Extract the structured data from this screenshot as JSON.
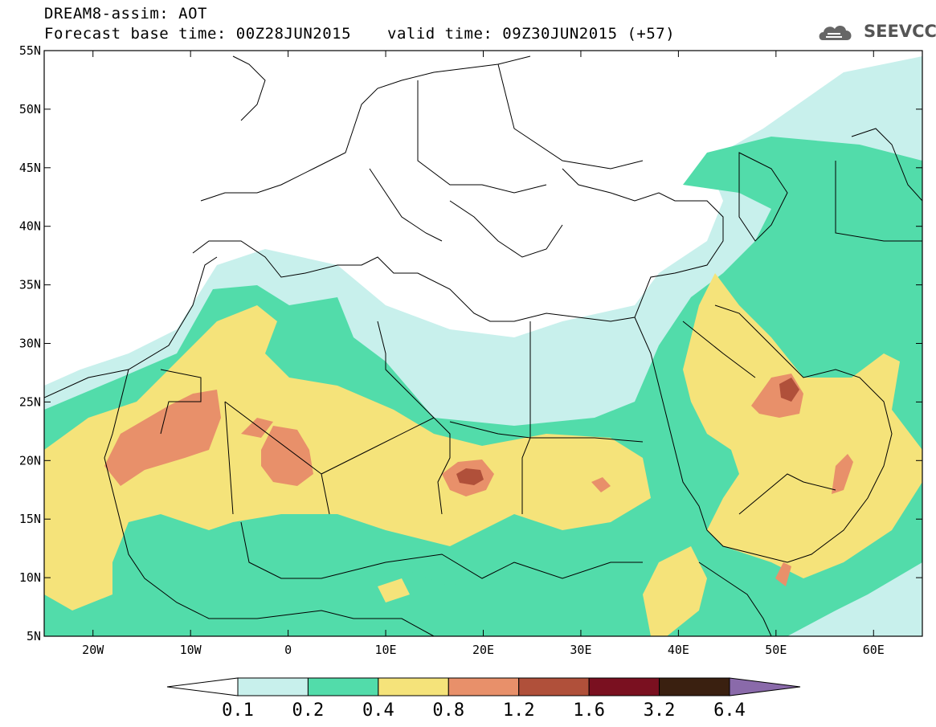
{
  "header": {
    "product": "DREAM8-assim: AOT",
    "base_time": "Forecast base time: 00Z28JUN2015",
    "valid_time": "valid time: 09Z30JUN2015 (+57)"
  },
  "logo": {
    "text": "SEEVCCC",
    "icon": "cloud-icon"
  },
  "map": {
    "lon_range": [
      -25,
      65
    ],
    "lat_range": [
      5,
      55
    ],
    "lat_ticks": [
      "5N",
      "10N",
      "15N",
      "20N",
      "25N",
      "30N",
      "35N",
      "40N",
      "45N",
      "50N",
      "55N"
    ],
    "lon_ticks": [
      "20W",
      "10W",
      "0",
      "10E",
      "20E",
      "30E",
      "40E",
      "50E",
      "60E"
    ]
  },
  "colorbar": {
    "labels": [
      "0.1",
      "0.2",
      "0.4",
      "0.8",
      "1.2",
      "1.6",
      "3.2",
      "6.4"
    ],
    "colors": [
      "#ffffff",
      "#c8f0ec",
      "#52dcaa",
      "#f5e37a",
      "#e8906a",
      "#b0503a",
      "#7a1020",
      "#3a2010",
      "#8a6aaa"
    ]
  }
}
